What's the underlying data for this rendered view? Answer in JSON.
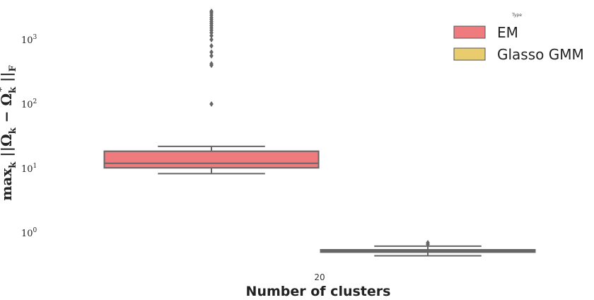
{
  "chart_data": {
    "type": "box",
    "xlabel": "Number of clusters",
    "ylabel_parts": [
      "max",
      "k",
      " ||Ω",
      "k",
      " − Ω",
      "k",
      "*",
      " ||",
      "F"
    ],
    "y_scale": "log",
    "ylim": [
      0.3,
      4000
    ],
    "yticks": [
      {
        "value": 1,
        "base": "10",
        "exp": "0"
      },
      {
        "value": 10,
        "base": "10",
        "exp": "1"
      },
      {
        "value": 100,
        "base": "10",
        "exp": "2"
      },
      {
        "value": 1000,
        "base": "10",
        "exp": "3"
      }
    ],
    "categories": [
      "20"
    ],
    "grid": false,
    "legend": {
      "title": "Type",
      "placement": "top-right",
      "entries": [
        "EM",
        "Glasso GMM"
      ]
    },
    "series": [
      {
        "name": "EM",
        "color": "#f07b7e",
        "edge_color": "#666666",
        "category": "20",
        "whisker_low": 8.3,
        "q1": 10.2,
        "median": 12.0,
        "q3": 18.5,
        "whisker_high": 22.0,
        "outliers": [
          100,
          400,
          420,
          560,
          640,
          800,
          1000,
          1150,
          1280,
          1400,
          1520,
          1650,
          1780,
          1900,
          2050,
          2200,
          2400,
          2600,
          2750
        ]
      },
      {
        "name": "Glasso GMM",
        "color": "#e8cc6e",
        "edge_color": "#666666",
        "category": "20",
        "whisker_low": 0.44,
        "q1": 0.5,
        "median": 0.52,
        "q3": 0.545,
        "whisker_high": 0.62,
        "outliers": [
          0.66,
          0.7
        ]
      }
    ]
  }
}
